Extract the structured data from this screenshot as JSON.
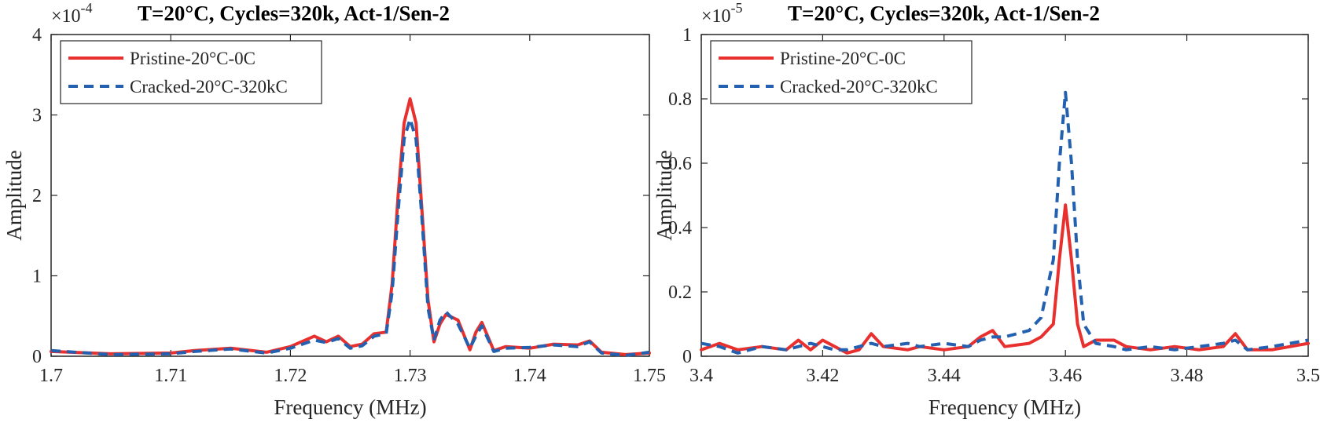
{
  "chart_data": [
    {
      "type": "line",
      "title": "T=20°C, Cycles=320k, Act-1/Sen-2",
      "xlabel": "Frequency (MHz)",
      "ylabel": "Amplitude",
      "exponent_label": "×10",
      "exponent_power": "-4",
      "xlim": [
        1.7,
        1.75
      ],
      "ylim": [
        0,
        4
      ],
      "xticks": [
        "1.7",
        "1.71",
        "1.72",
        "1.73",
        "1.74",
        "1.75"
      ],
      "yticks": [
        "0",
        "1",
        "2",
        "3",
        "4"
      ],
      "grid": false,
      "legend_position": "top-left",
      "series": [
        {
          "name": "Pristine-20°C-0C",
          "color": "#e8312f",
          "style": "solid",
          "x": [
            1.7,
            1.705,
            1.71,
            1.712,
            1.715,
            1.718,
            1.72,
            1.722,
            1.723,
            1.724,
            1.725,
            1.726,
            1.727,
            1.728,
            1.7285,
            1.729,
            1.7295,
            1.73,
            1.7305,
            1.731,
            1.7315,
            1.732,
            1.7325,
            1.733,
            1.734,
            1.735,
            1.7355,
            1.736,
            1.737,
            1.738,
            1.74,
            1.742,
            1.744,
            1.745,
            1.746,
            1.748,
            1.75
          ],
          "y": [
            0.06,
            0.03,
            0.04,
            0.07,
            0.1,
            0.05,
            0.12,
            0.25,
            0.18,
            0.25,
            0.12,
            0.15,
            0.28,
            0.3,
            0.9,
            2.0,
            2.9,
            3.2,
            2.9,
            1.8,
            0.7,
            0.18,
            0.4,
            0.52,
            0.45,
            0.08,
            0.3,
            0.42,
            0.07,
            0.12,
            0.1,
            0.15,
            0.14,
            0.19,
            0.05,
            0.02,
            0.04
          ]
        },
        {
          "name": "Cracked-20°C-320kC",
          "color": "#2460b0",
          "style": "dashed",
          "x": [
            1.7,
            1.705,
            1.71,
            1.712,
            1.715,
            1.718,
            1.72,
            1.722,
            1.723,
            1.724,
            1.725,
            1.726,
            1.727,
            1.728,
            1.7285,
            1.729,
            1.7295,
            1.73,
            1.7305,
            1.731,
            1.7315,
            1.732,
            1.7325,
            1.733,
            1.734,
            1.735,
            1.7355,
            1.736,
            1.737,
            1.738,
            1.74,
            1.742,
            1.744,
            1.745,
            1.746,
            1.748,
            1.75
          ],
          "y": [
            0.07,
            0.02,
            0.03,
            0.06,
            0.09,
            0.04,
            0.1,
            0.2,
            0.17,
            0.22,
            0.1,
            0.13,
            0.25,
            0.28,
            0.8,
            1.8,
            2.7,
            2.95,
            2.7,
            1.7,
            0.6,
            0.2,
            0.45,
            0.55,
            0.4,
            0.1,
            0.25,
            0.38,
            0.06,
            0.1,
            0.11,
            0.14,
            0.12,
            0.18,
            0.04,
            0.01,
            0.05
          ]
        }
      ]
    },
    {
      "type": "line",
      "title": "T=20°C, Cycles=320k, Act-1/Sen-2",
      "xlabel": "Frequency (MHz)",
      "ylabel": "Amplitude",
      "exponent_label": "×10",
      "exponent_power": "-5",
      "xlim": [
        3.4,
        3.5
      ],
      "ylim": [
        0,
        1
      ],
      "xticks": [
        "3.4",
        "3.42",
        "3.44",
        "3.46",
        "3.48",
        "3.5"
      ],
      "yticks": [
        "0",
        "0.2",
        "0.4",
        "0.6",
        "0.8",
        "1"
      ],
      "grid": false,
      "legend_position": "top-left",
      "series": [
        {
          "name": "Pristine-20°C-0C",
          "color": "#e8312f",
          "style": "solid",
          "x": [
            3.4,
            3.403,
            3.406,
            3.41,
            3.414,
            3.416,
            3.418,
            3.42,
            3.422,
            3.424,
            3.426,
            3.428,
            3.43,
            3.434,
            3.436,
            3.44,
            3.444,
            3.446,
            3.448,
            3.45,
            3.454,
            3.456,
            3.458,
            3.459,
            3.46,
            3.461,
            3.462,
            3.463,
            3.465,
            3.468,
            3.47,
            3.474,
            3.478,
            3.482,
            3.486,
            3.488,
            3.49,
            3.494,
            3.5
          ],
          "y": [
            0.02,
            0.04,
            0.02,
            0.03,
            0.02,
            0.05,
            0.02,
            0.05,
            0.03,
            0.01,
            0.02,
            0.07,
            0.03,
            0.02,
            0.03,
            0.02,
            0.03,
            0.06,
            0.08,
            0.03,
            0.04,
            0.06,
            0.1,
            0.3,
            0.47,
            0.3,
            0.1,
            0.03,
            0.05,
            0.05,
            0.03,
            0.02,
            0.03,
            0.02,
            0.03,
            0.07,
            0.02,
            0.02,
            0.04
          ]
        },
        {
          "name": "Cracked-20°C-320kC",
          "color": "#2460b0",
          "style": "dashed",
          "x": [
            3.4,
            3.403,
            3.406,
            3.41,
            3.414,
            3.416,
            3.418,
            3.42,
            3.422,
            3.424,
            3.426,
            3.428,
            3.43,
            3.434,
            3.436,
            3.44,
            3.444,
            3.446,
            3.448,
            3.45,
            3.454,
            3.456,
            3.458,
            3.459,
            3.46,
            3.461,
            3.462,
            3.463,
            3.465,
            3.468,
            3.47,
            3.474,
            3.478,
            3.482,
            3.486,
            3.488,
            3.49,
            3.494,
            3.5
          ],
          "y": [
            0.04,
            0.03,
            0.01,
            0.03,
            0.02,
            0.03,
            0.04,
            0.03,
            0.02,
            0.02,
            0.03,
            0.04,
            0.03,
            0.04,
            0.03,
            0.04,
            0.03,
            0.05,
            0.06,
            0.06,
            0.08,
            0.12,
            0.3,
            0.6,
            0.82,
            0.6,
            0.3,
            0.1,
            0.04,
            0.03,
            0.02,
            0.03,
            0.02,
            0.03,
            0.04,
            0.05,
            0.02,
            0.03,
            0.05
          ]
        }
      ]
    }
  ]
}
